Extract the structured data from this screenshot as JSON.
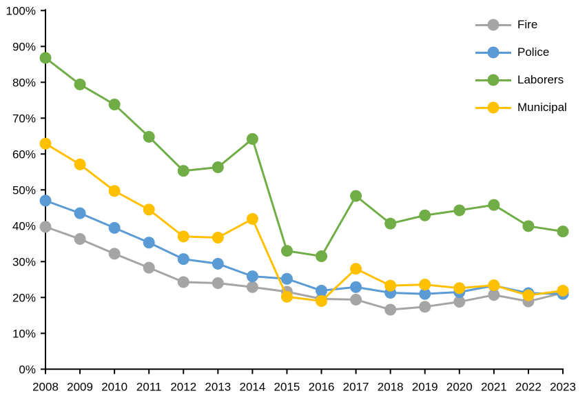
{
  "chart_data": {
    "type": "line",
    "categories": [
      "2008",
      "2009",
      "2010",
      "2011",
      "2012",
      "2013",
      "2014",
      "2015",
      "2016",
      "2017",
      "2018",
      "2019",
      "2020",
      "2021",
      "2022",
      "2023"
    ],
    "series": [
      {
        "name": "Fire",
        "color": "#A5A5A5",
        "values": [
          39.7,
          36.3,
          32.2,
          28.3,
          24.3,
          24.0,
          22.9,
          21.6,
          19.6,
          19.4,
          16.6,
          17.4,
          18.8,
          20.7,
          18.9,
          21.3
        ]
      },
      {
        "name": "Police",
        "color": "#5B9BD5",
        "values": [
          47.0,
          43.5,
          39.4,
          35.3,
          30.7,
          29.4,
          25.9,
          25.2,
          21.9,
          22.9,
          21.3,
          21.0,
          21.5,
          23.3,
          21.2,
          21.0
        ]
      },
      {
        "name": "Laborers",
        "color": "#70AD47",
        "values": [
          86.8,
          79.4,
          73.8,
          64.8,
          55.3,
          56.3,
          64.2,
          33.0,
          31.5,
          48.3,
          40.6,
          42.9,
          44.3,
          45.8,
          39.9,
          38.4
        ]
      },
      {
        "name": "Municipal",
        "color": "#FFC000",
        "values": [
          62.9,
          57.1,
          49.7,
          44.5,
          37.0,
          36.7,
          41.9,
          20.2,
          19.0,
          28.0,
          23.3,
          23.6,
          22.6,
          23.4,
          20.6,
          21.9
        ]
      }
    ],
    "xlabel": "",
    "ylabel": "",
    "ylim": [
      0,
      100
    ],
    "y_tick_step": 10,
    "y_tick_labels": [
      "0%",
      "10%",
      "20%",
      "30%",
      "40%",
      "50%",
      "60%",
      "70%",
      "80%",
      "90%",
      "100%"
    ],
    "grid": false,
    "legend_position": "top-right",
    "axis_color": "#000000",
    "text_color": "#000000"
  }
}
